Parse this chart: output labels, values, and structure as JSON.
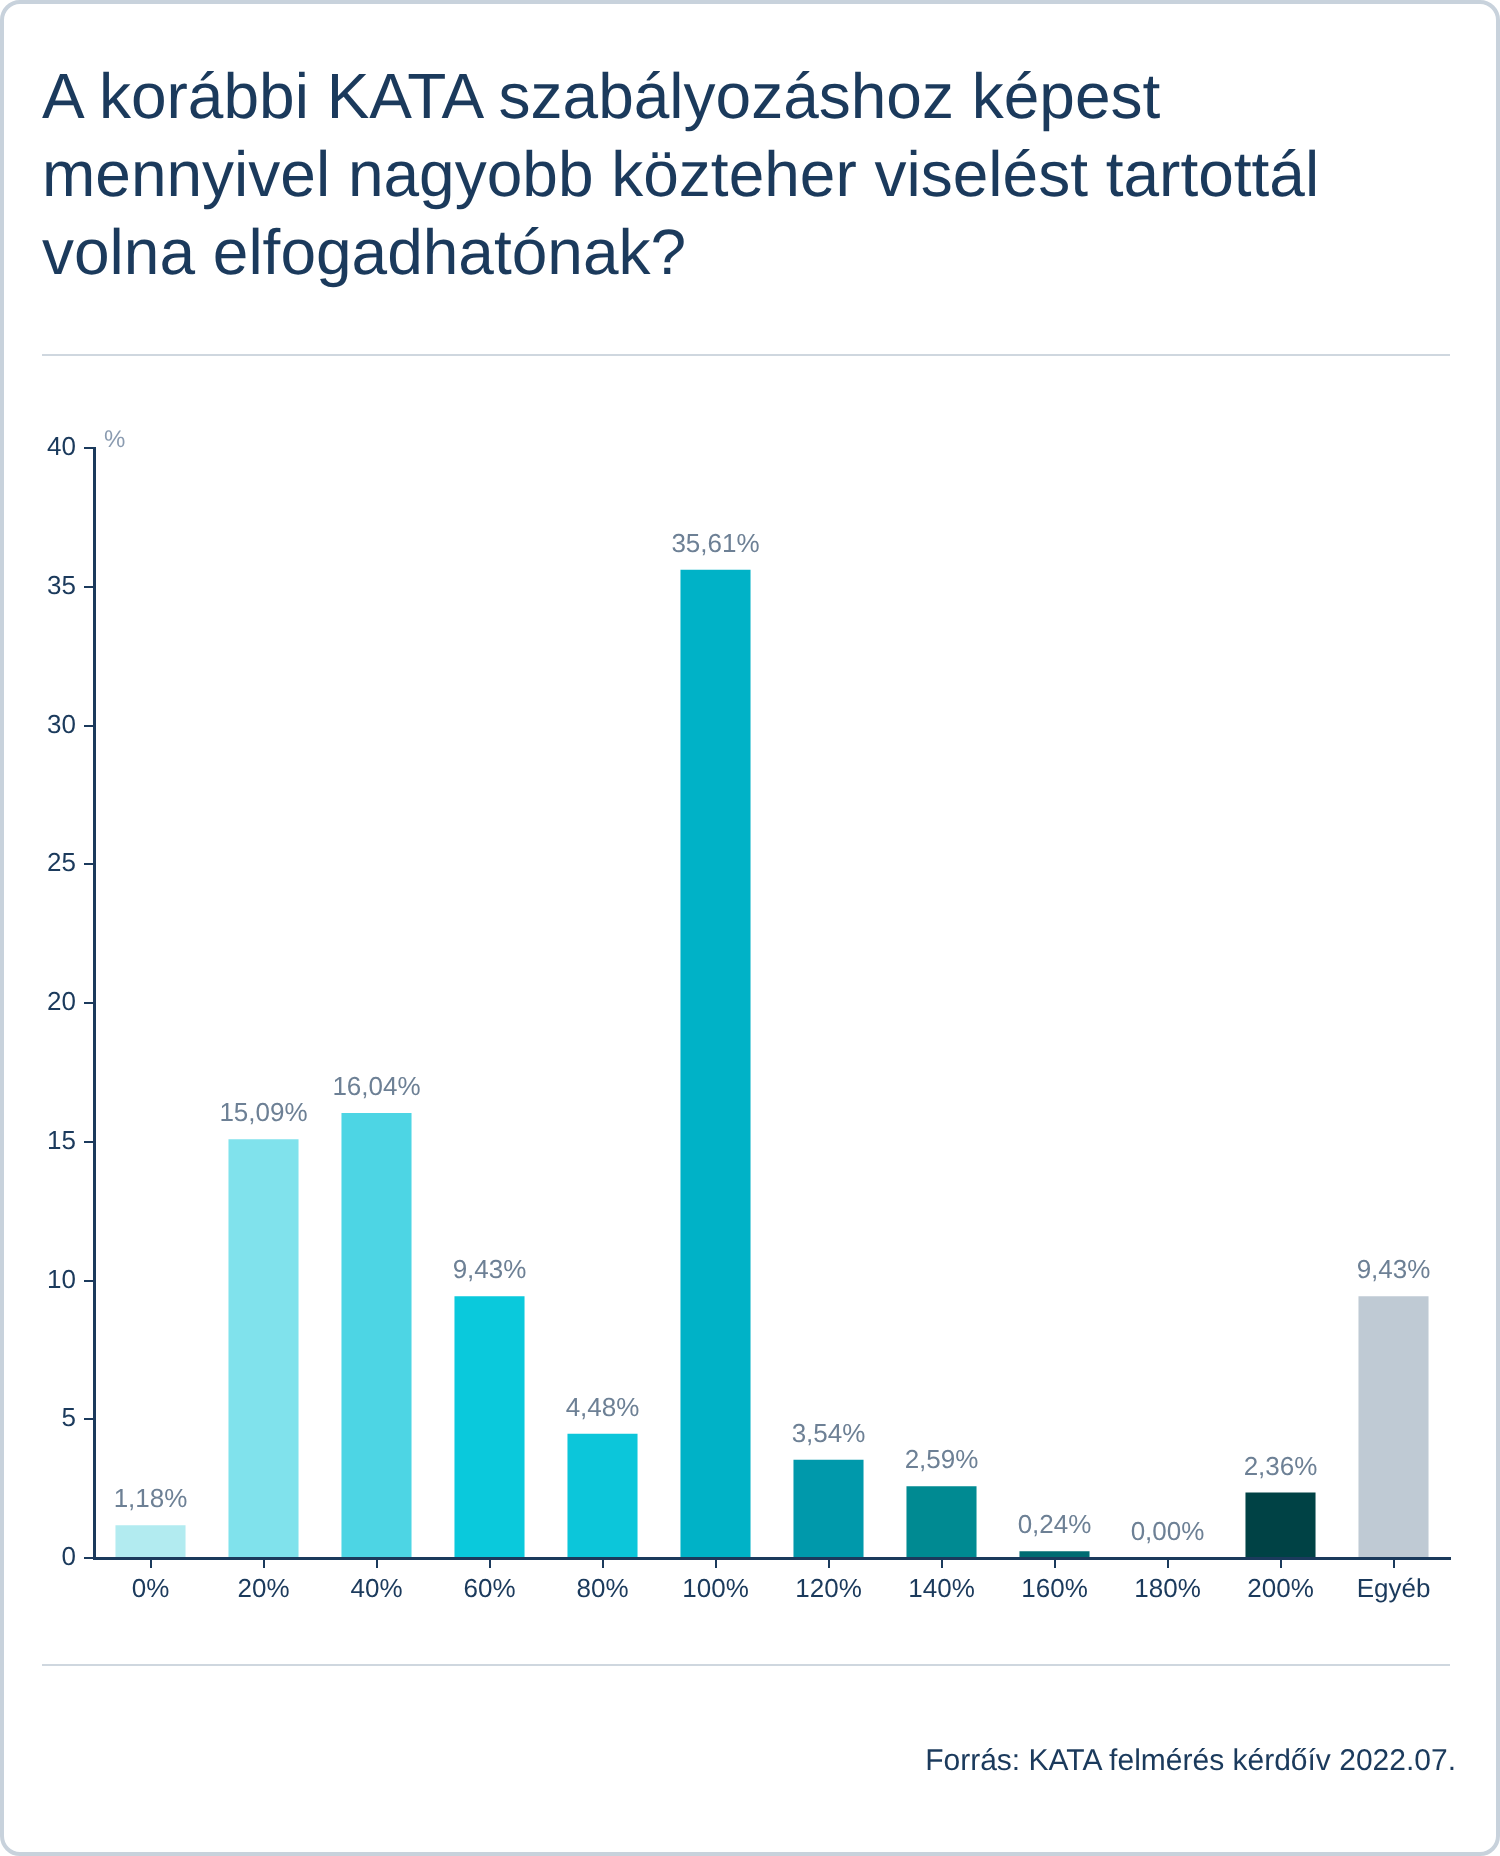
{
  "chart_data": {
    "type": "bar",
    "title": "A korábbi KATA szabályozáshoz képest mennyivel nagyobb közteher viselést tartottál volna elfogadhatónak?",
    "ylabel": "%",
    "categories": [
      "0%",
      "20%",
      "40%",
      "60%",
      "80%",
      "100%",
      "120%",
      "140%",
      "160%",
      "180%",
      "200%",
      "Egyéb"
    ],
    "values": [
      1.18,
      15.09,
      16.04,
      9.43,
      4.48,
      35.61,
      3.54,
      2.59,
      0.24,
      0.0,
      2.36,
      9.43
    ],
    "colors": [
      "#b2ebf0",
      "#80e2ec",
      "#4dd5e4",
      "#0ac9dc",
      "#0cc6da",
      "#00b2c7",
      "#0099ab",
      "#008a92",
      "#006b72",
      "#005a5f",
      "#004245",
      "#bfcad4"
    ],
    "value_labels": [
      "1,18%",
      "15,09%",
      "16,04%",
      "9,43%",
      "4,48%",
      "35,61%",
      "3,54%",
      "2,59%",
      "0,24%",
      "0,00%",
      "2,36%",
      "9,43%"
    ],
    "ylim": [
      0,
      40
    ],
    "yticks": [
      0,
      5,
      10,
      15,
      20,
      25,
      30,
      35,
      40
    ],
    "grid": false,
    "annotations": [
      "Forrás: KATA felmérés kérdőív 2022.07."
    ]
  }
}
